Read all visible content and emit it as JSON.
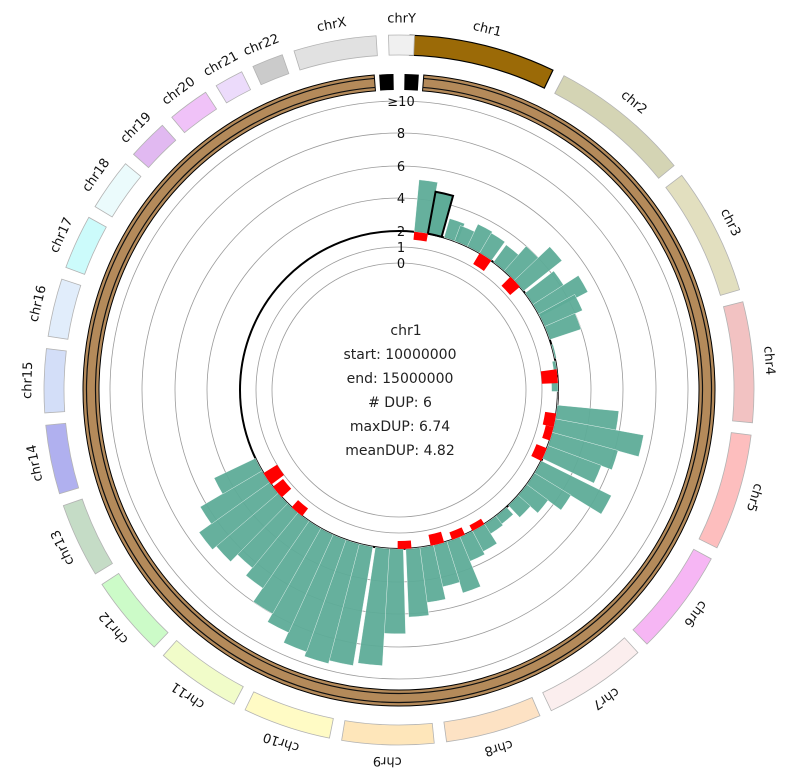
{
  "chart_data": {
    "type": "circos",
    "chromosomes": [
      {
        "name": "chr1",
        "color": "#9b6a07"
      },
      {
        "name": "chr2",
        "color": "#d4d4b4"
      },
      {
        "name": "chr3",
        "color": "#e2dfbf"
      },
      {
        "name": "chr4",
        "color": "#f2c2c2"
      },
      {
        "name": "chr5",
        "color": "#fdbebe"
      },
      {
        "name": "chr6",
        "color": "#f6b6f4"
      },
      {
        "name": "chr7",
        "color": "#fbeeee"
      },
      {
        "name": "chr8",
        "color": "#fde2c4"
      },
      {
        "name": "chr9",
        "color": "#fee6ba"
      },
      {
        "name": "chr10",
        "color": "#fffbc5"
      },
      {
        "name": "chr11",
        "color": "#f1fcc9"
      },
      {
        "name": "chr12",
        "color": "#ccfbc8"
      },
      {
        "name": "chr13",
        "color": "#c5dcc6"
      },
      {
        "name": "chr14",
        "color": "#b0b0ef"
      },
      {
        "name": "chr15",
        "color": "#d3def8"
      },
      {
        "name": "chr16",
        "color": "#e1edfb"
      },
      {
        "name": "chr17",
        "color": "#ccfbfb"
      },
      {
        "name": "chr18",
        "color": "#ebfbfc"
      },
      {
        "name": "chr19",
        "color": "#e1b9f1"
      },
      {
        "name": "chr20",
        "color": "#f0c2f8"
      },
      {
        "name": "chr21",
        "color": "#ecdbfb"
      },
      {
        "name": "chr22",
        "color": "#cbcbcb"
      },
      {
        "name": "chrX",
        "color": "#e1e1e1"
      },
      {
        "name": "chrY",
        "color": "#f0f0f0"
      }
    ],
    "ticks": [
      "0",
      "1",
      "2",
      "4",
      "6",
      "8",
      "≥10"
    ],
    "dup_bars": [
      {
        "theta": 8,
        "v": 5.2
      },
      {
        "theta": 13,
        "v": 4.6
      },
      {
        "theta": 19,
        "v": 3.2
      },
      {
        "theta": 23,
        "v": 3.0
      },
      {
        "theta": 28,
        "v": 3.5
      },
      {
        "theta": 33,
        "v": 3.4
      },
      {
        "theta": 39,
        "v": 3.3
      },
      {
        "theta": 44,
        "v": 4.0
      },
      {
        "theta": 49,
        "v": 5.0
      },
      {
        "theta": 55,
        "v": 4.2
      },
      {
        "theta": 60,
        "v": 5.3
      },
      {
        "theta": 64,
        "v": 4.5
      },
      {
        "theta": 69,
        "v": 4.0
      },
      {
        "theta": 76,
        "v": 2.1
      },
      {
        "theta": 82,
        "v": 1.8
      },
      {
        "theta": 88,
        "v": 1.6
      },
      {
        "theta": 93,
        "v": 2.0
      },
      {
        "theta": 98,
        "v": 5.8
      },
      {
        "theta": 103,
        "v": 7.5
      },
      {
        "theta": 108,
        "v": 6.2
      },
      {
        "theta": 113,
        "v": 5.5
      },
      {
        "theta": 119,
        "v": 6.8
      },
      {
        "theta": 124,
        "v": 4.6
      },
      {
        "theta": 129,
        "v": 3.6
      },
      {
        "theta": 134,
        "v": 3.0
      },
      {
        "theta": 140,
        "v": 2.6
      },
      {
        "theta": 145,
        "v": 2.7
      },
      {
        "theta": 150,
        "v": 3.4
      },
      {
        "theta": 155,
        "v": 3.6
      },
      {
        "theta": 160,
        "v": 5.3
      },
      {
        "theta": 165,
        "v": 4.6
      },
      {
        "theta": 170,
        "v": 5.4
      },
      {
        "theta": 175,
        "v": 6.2
      },
      {
        "theta": 181,
        "v": 7.2
      },
      {
        "theta": 186,
        "v": 9.2
      },
      {
        "theta": 192,
        "v": 9.4
      },
      {
        "theta": 197,
        "v": 9.6
      },
      {
        "theta": 202,
        "v": 9.3
      },
      {
        "theta": 207,
        "v": 8.6
      },
      {
        "theta": 212,
        "v": 8.0
      },
      {
        "theta": 217,
        "v": 7.0
      },
      {
        "theta": 222,
        "v": 6.4
      },
      {
        "theta": 227,
        "v": 7.0
      },
      {
        "theta": 232,
        "v": 7.3
      },
      {
        "theta": 237,
        "v": 6.4
      },
      {
        "theta": 242,
        "v": 4.8
      }
    ],
    "highlight_bar": {
      "theta": 13,
      "v": 4.6
    },
    "red_marks": [
      {
        "theta": 8,
        "r": 1.5
      },
      {
        "theta": 33,
        "r": 1.2
      },
      {
        "theta": 47,
        "r": 1.2
      },
      {
        "theta": 85,
        "r": 1.0
      },
      {
        "theta": 101,
        "r": 1.3
      },
      {
        "theta": 106,
        "r": 1.5
      },
      {
        "theta": 114,
        "r": 1.3
      },
      {
        "theta": 150,
        "r": 1.6
      },
      {
        "theta": 158,
        "r": 1.5
      },
      {
        "theta": 166,
        "r": 1.3
      },
      {
        "theta": 178,
        "r": 1.5
      },
      {
        "theta": 220,
        "r": 1.4
      },
      {
        "theta": 230,
        "r": 1.2
      },
      {
        "theta": 236,
        "r": 1.0
      }
    ],
    "tooltip": {
      "chromosome": "chr1",
      "start": "start: 10000000",
      "end": "end: 15000000",
      "num_dup": "# DUP: 6",
      "max_dup": "maxDUP: 6.74",
      "mean_dup": "meanDUP: 4.82"
    },
    "colors": {
      "bar": "#5eac98",
      "red": "#ff0000",
      "outer_ring": "#b48a5a",
      "outer_ring_inner_line": "#e6c34a"
    }
  }
}
